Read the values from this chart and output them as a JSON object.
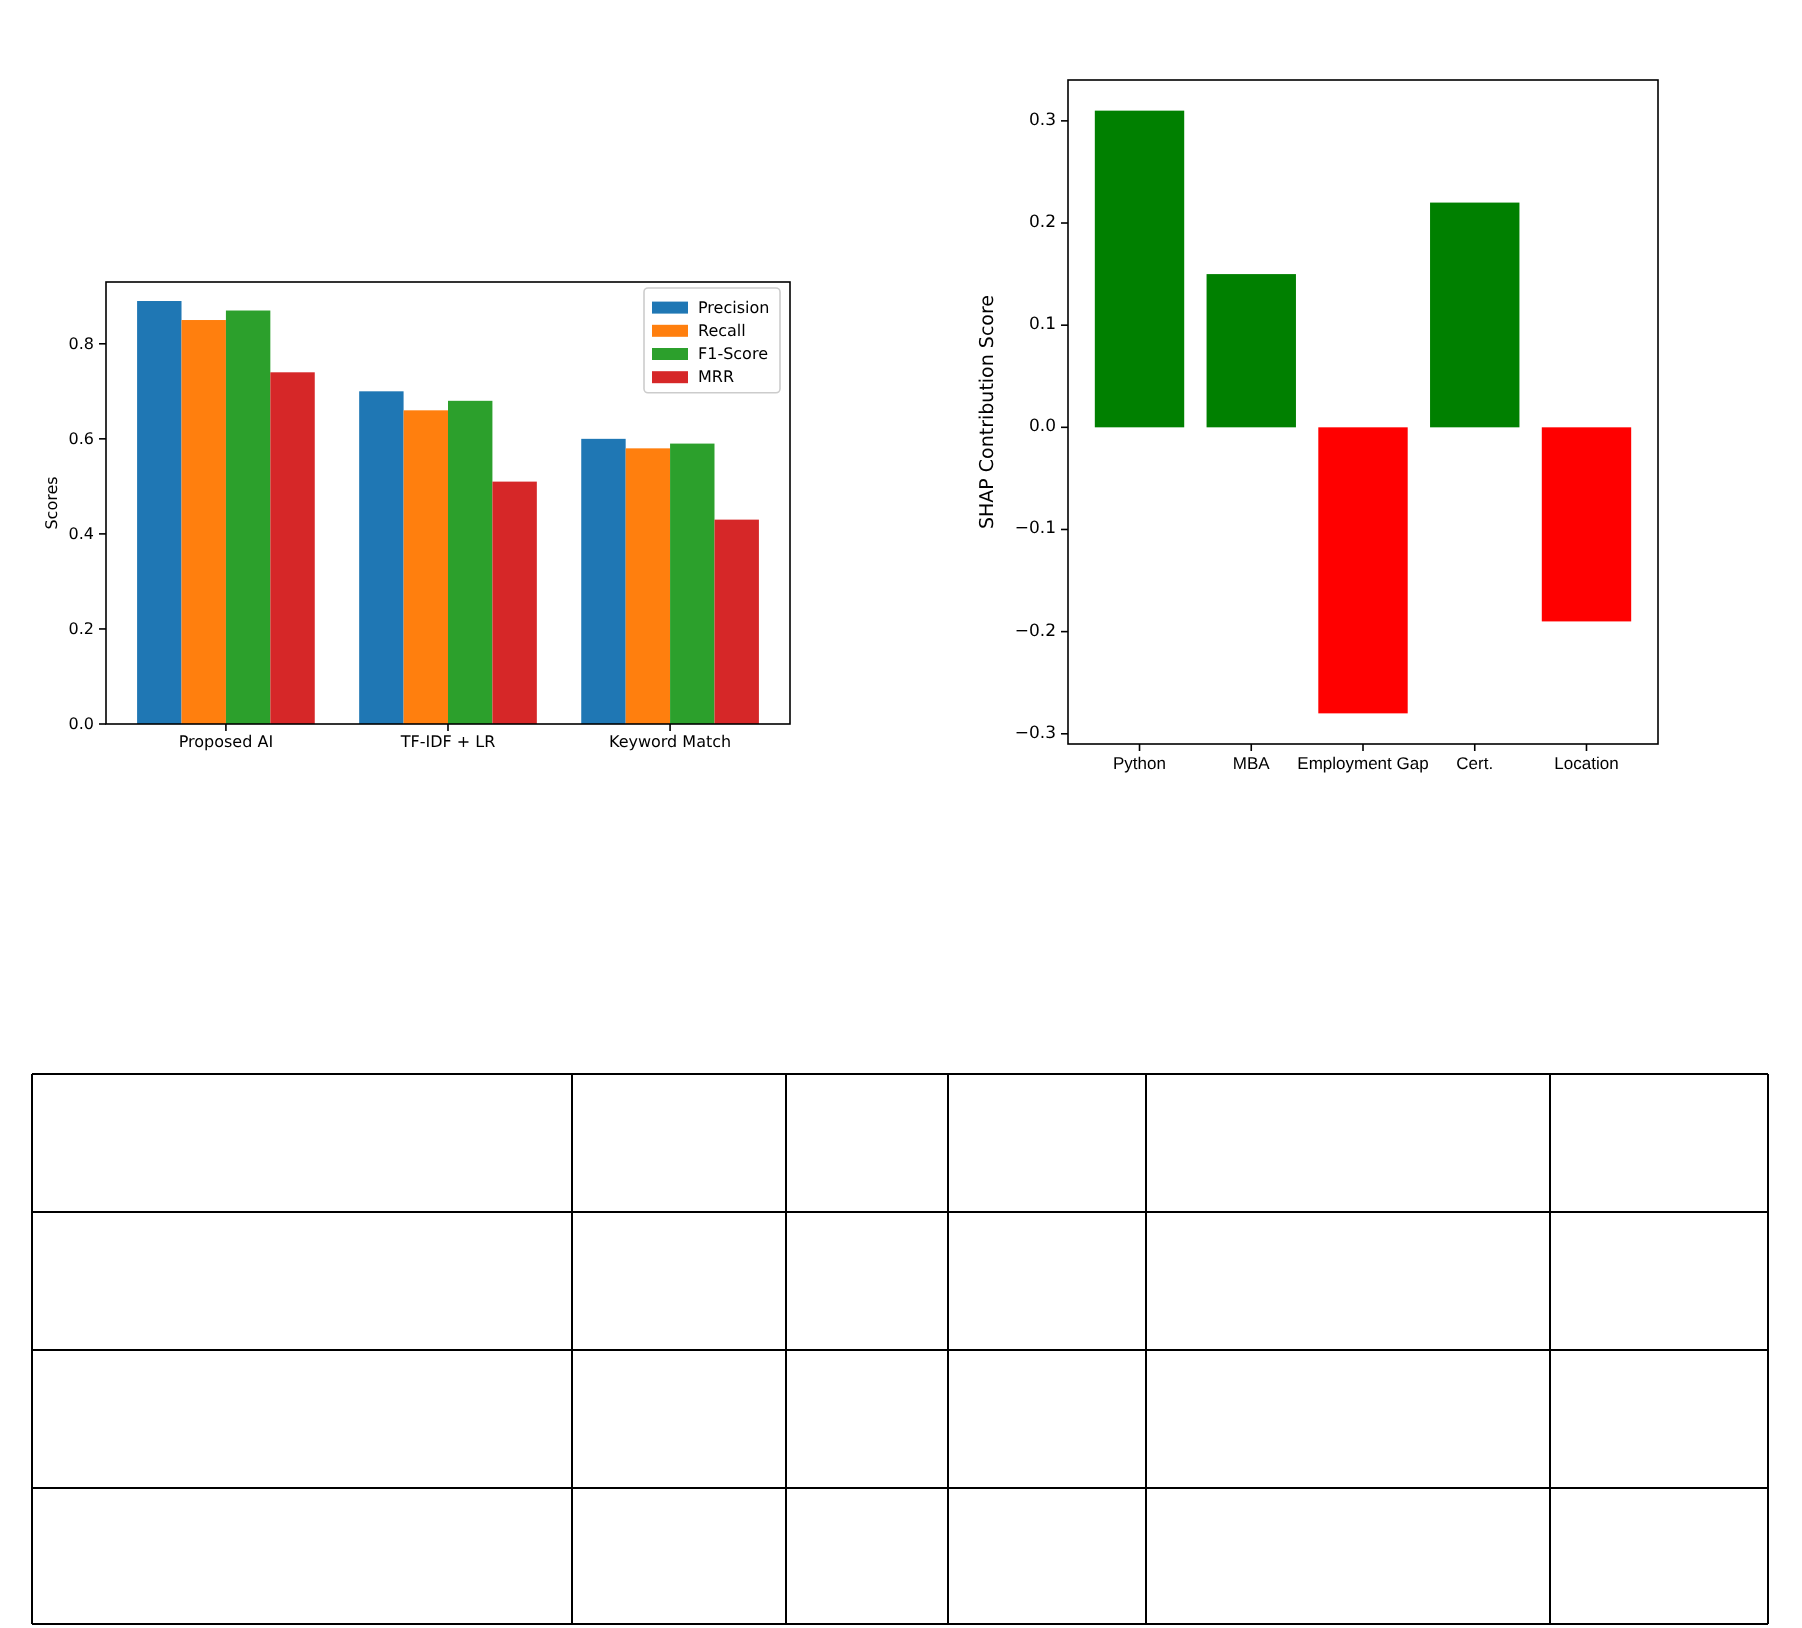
{
  "chart_data": [
    {
      "type": "bar",
      "categories": [
        "Proposed AI",
        "TF-IDF + LR",
        "Keyword Match"
      ],
      "ylabel": "Scores",
      "ylim": [
        0,
        0.93
      ],
      "yticks": [
        {
          "value": 0,
          "label": "0.0"
        },
        0.2,
        0.4,
        0.6,
        0.8
      ],
      "legend": "top right",
      "series": [
        {
          "name": "Precision",
          "color": "#1f77b4",
          "values": [
            0.89,
            0.7,
            0.6
          ]
        },
        {
          "name": "Recall",
          "color": "#ff7f0e",
          "values": [
            0.85,
            0.66,
            0.58
          ]
        },
        {
          "name": "F1-Score",
          "color": "#2ca02c",
          "values": [
            0.87,
            0.68,
            0.59
          ]
        },
        {
          "name": "MRR",
          "color": "#d62728",
          "values": [
            0.74,
            0.51,
            0.43
          ]
        }
      ]
    },
    {
      "type": "bar",
      "categories": [
        "Python",
        "MBA",
        "Employment Gap",
        "Cert.",
        "Location"
      ],
      "ylabel": "SHAP Contribution Score",
      "ylim": [
        -0.31,
        0.34
      ],
      "yticks": [
        {
          "value": -0.3,
          "label": "−0.3"
        },
        {
          "value": -0.2,
          "label": "−0.2"
        },
        {
          "value": -0.1,
          "label": "−0.1"
        },
        {
          "value": 0,
          "label": "0.0"
        },
        0.1,
        0.2,
        0.3
      ],
      "values": [
        0.31,
        0.15,
        -0.28,
        0.22,
        -0.19
      ],
      "colors": [
        "#008000",
        "#008000",
        "#ff0000",
        "#008000",
        "#ff0000"
      ]
    }
  ]
}
